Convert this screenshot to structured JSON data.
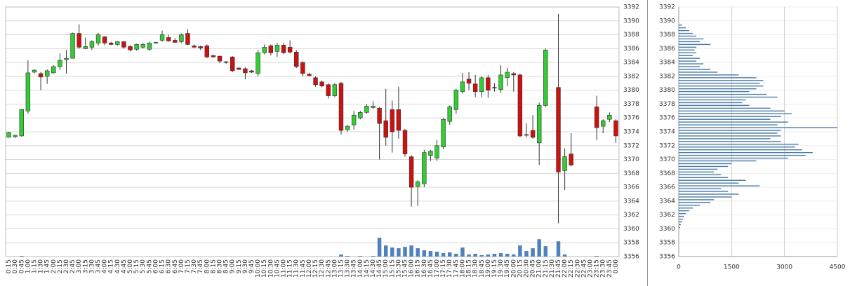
{
  "chart_data": [
    {
      "type": "candlestick",
      "categories": [
        "0:15",
        "0:30",
        "0:45",
        "1:00",
        "1:15",
        "1:30",
        "1:45",
        "2:00",
        "2:15",
        "2:30",
        "2:45",
        "3:00",
        "3:15",
        "3:30",
        "3:45",
        "4:00",
        "4:15",
        "4:30",
        "4:45",
        "5:00",
        "5:15",
        "5:30",
        "5:45",
        "6:00",
        "6:15",
        "6:30",
        "6:45",
        "7:00",
        "7:15",
        "7:30",
        "7:45",
        "8:00",
        "8:15",
        "8:30",
        "8:45",
        "9:00",
        "9:15",
        "9:30",
        "9:45",
        "10:00",
        "10:15",
        "10:30",
        "10:45",
        "11:00",
        "11:15",
        "11:30",
        "11:45",
        "12:00",
        "12:15",
        "12:30",
        "12:45",
        "13:00",
        "13:15",
        "13:30",
        "13:45",
        "14:00",
        "14:15",
        "14:30",
        "14:45",
        "15:00",
        "15:15",
        "15:30",
        "15:45",
        "16:00",
        "16:15",
        "16:30",
        "16:45",
        "17:00",
        "17:15",
        "17:30",
        "17:45",
        "18:00",
        "18:15",
        "18:30",
        "18:45",
        "19:00",
        "19:15",
        "19:30",
        "19:45",
        "20:00",
        "20:15",
        "20:30",
        "20:45",
        "21:00",
        "21:15",
        "21:30",
        "21:45",
        "22:00",
        "22:15",
        "22:30",
        "22:45",
        "23:00",
        "23:15",
        "23:30",
        "23:45",
        "0:00"
      ],
      "open": [
        3373.2,
        3373.3,
        3373.4,
        3377,
        3382.6,
        3382.4,
        3382,
        3382.5,
        3383.4,
        3384.4,
        3384.6,
        3388.2,
        3386,
        3386.2,
        3386.8,
        3387.7,
        3386.8,
        3386.6,
        3387,
        3386.3,
        3385.9,
        3386.2,
        3385.9,
        3386.8,
        3387.2,
        3387.6,
        3387.2,
        3387,
        3388.2,
        3386.4,
        3386.3,
        3386.4,
        3385,
        3384.9,
        3384.1,
        3384.8,
        3383.2,
        3383.1,
        3382.8,
        3382.4,
        3385.4,
        3386.4,
        3385.6,
        3386.5,
        3386.2,
        3385.5,
        3384,
        3382.3,
        3381.8,
        3381.2,
        3380.8,
        3379.2,
        3381,
        3374.3,
        3375,
        3376,
        3376.8,
        3377.5,
        3377.4,
        3375.6,
        3377.2,
        3377.2,
        3374.2,
        3370.4,
        3366.1,
        3366.5,
        3370.6,
        3370.2,
        3371.8,
        3375.5,
        3377.2,
        3379.8,
        3381.6,
        3380.9,
        3379.8,
        3381.8,
        3380.4,
        3380.1,
        3381.8,
        3382.4,
        3382.2,
        3373.6,
        3374.2,
        3372.4,
        3377.8,
        null,
        3380.4,
        3368.4,
        3370.8,
        null,
        null,
        null,
        3377.6,
        3374.8,
        3375.8,
        3375.6
      ],
      "high": [
        3374,
        3373.6,
        3377.3,
        3384.3,
        3383,
        3382.6,
        3383,
        3383.6,
        3385.3,
        3385.8,
        3388.3,
        3389.5,
        3387.6,
        3387.2,
        3388.3,
        3387.8,
        3387,
        3387.1,
        3387.1,
        3386.5,
        3386.7,
        3386.8,
        3387,
        3387,
        3388.6,
        3388,
        3387.5,
        3388.2,
        3388.8,
        3386.6,
        3386.4,
        3386.6,
        3385.1,
        3385,
        3384.2,
        3384.9,
        3383.3,
        3383.3,
        3382.9,
        3385.8,
        3386.6,
        3386.6,
        3386.8,
        3386.8,
        3387.2,
        3385.8,
        3384.2,
        3382.5,
        3382,
        3381.4,
        3381,
        3381,
        3381.2,
        3375,
        3377,
        3377,
        3378,
        3378.4,
        3377.6,
        3380.2,
        3378.5,
        3380.5,
        3374.4,
        3370.6,
        3367,
        3371.4,
        3371.4,
        3372.8,
        3376,
        3377.8,
        3380.2,
        3382.5,
        3382.6,
        3382.2,
        3382,
        3382.2,
        3381,
        3383.6,
        3383.2,
        3382.6,
        3382.4,
        3375.2,
        3376.4,
        3378.2,
        3386,
        null,
        3391,
        3371.6,
        3373.8,
        null,
        null,
        null,
        3379.2,
        3375.8,
        3376.8,
        3375.8
      ],
      "low": [
        3373.2,
        3373.1,
        3373.3,
        3376.6,
        3382.4,
        3380,
        3380.9,
        3382.4,
        3382.9,
        3382.4,
        3384.6,
        3386,
        3385.9,
        3385.8,
        3386.4,
        3386.5,
        3386.5,
        3386.4,
        3386,
        3385.6,
        3385.7,
        3386,
        3385.7,
        3386.7,
        3387,
        3387,
        3386.8,
        3386.8,
        3386.5,
        3386.1,
        3385.8,
        3384.6,
        3384.7,
        3383.9,
        3383.8,
        3382.6,
        3382.9,
        3381.6,
        3382.5,
        3382,
        3385.2,
        3385,
        3384.8,
        3385.2,
        3385.3,
        3383.2,
        3382,
        3382,
        3380.5,
        3380.4,
        3378.8,
        3379,
        3373.6,
        3374,
        3374.3,
        3375.8,
        3376.6,
        3377.3,
        3370,
        3372,
        3371,
        3373,
        3370.4,
        3363.2,
        3363.3,
        3366,
        3369.8,
        3369.8,
        3371.5,
        3375,
        3376.6,
        3379.5,
        3380,
        3379,
        3379,
        3378.9,
        3379.8,
        3379.6,
        3380.6,
        3379.8,
        3373.2,
        3373.2,
        3373,
        3369.2,
        3377.6,
        null,
        3360.8,
        3365.6,
        3369,
        null,
        null,
        null,
        3372.8,
        3373.8,
        3375.4,
        3372.4
      ],
      "close": [
        3373.9,
        3373.5,
        3377.2,
        3382.5,
        3382.9,
        3381.9,
        3382.8,
        3383.4,
        3384.3,
        3384.6,
        3388.2,
        3386.2,
        3386.3,
        3387,
        3388,
        3386.8,
        3386.6,
        3387,
        3386.2,
        3385.8,
        3386.6,
        3386.6,
        3386.8,
        3386.9,
        3388,
        3387.1,
        3386.9,
        3388,
        3386.6,
        3386.2,
        3386.1,
        3384.8,
        3384.8,
        3384.2,
        3384,
        3382.8,
        3383,
        3382.5,
        3382.6,
        3385.4,
        3386.2,
        3385.4,
        3386.5,
        3385.4,
        3385.5,
        3383.4,
        3382.4,
        3382.1,
        3380.8,
        3380.6,
        3379.2,
        3380.8,
        3374.2,
        3374.8,
        3376.4,
        3376.8,
        3377.7,
        3377.7,
        3375.2,
        3373.2,
        3374,
        3374.2,
        3370.8,
        3366,
        3366.8,
        3371,
        3371.2,
        3372,
        3375.8,
        3377.6,
        3380,
        3381.2,
        3381,
        3379.8,
        3381.8,
        3380,
        3380.3,
        3382.2,
        3382.6,
        3382.2,
        3373.4,
        3373.5,
        3373.2,
        3377.8,
        3385.8,
        null,
        3368.2,
        3370.4,
        3369.2,
        null,
        null,
        null,
        3374.6,
        3375.6,
        3376.4,
        3373.4
      ],
      "volume": [
        0,
        0,
        0.1,
        0,
        0,
        0,
        0,
        0,
        0,
        0,
        0,
        0,
        0,
        0,
        0,
        0,
        0,
        0,
        0,
        0,
        0,
        0,
        0,
        0,
        0,
        0,
        0,
        0,
        0,
        0,
        0,
        0,
        0,
        0,
        0,
        0,
        0,
        0,
        0,
        0,
        0,
        0,
        0,
        0,
        0,
        0,
        0,
        0,
        0,
        0,
        0,
        0,
        0.3,
        0.1,
        0,
        0.1,
        0,
        0.1,
        2.7,
        1.6,
        1.3,
        1.2,
        1.4,
        1.6,
        1.2,
        0.9,
        0.8,
        0.7,
        0.5,
        0.6,
        0.4,
        1.3,
        0.3,
        0.4,
        0.2,
        0.3,
        0.4,
        0.5,
        0.4,
        0.3,
        1.6,
        0.8,
        1.2,
        2.5,
        1.5,
        0,
        2.2,
        0.3,
        0,
        0,
        0,
        0,
        0.1,
        0,
        0,
        0
      ],
      "ylim": [
        3356,
        3392
      ],
      "yticks": [
        3356,
        3358,
        3360,
        3362,
        3364,
        3366,
        3368,
        3370,
        3372,
        3374,
        3376,
        3378,
        3380,
        3382,
        3384,
        3386,
        3388,
        3390,
        3392
      ],
      "grid": true,
      "up_color": "#33cc33",
      "down_color": "#cc1111",
      "volume_color": "#4f81bd"
    },
    {
      "type": "barh",
      "y": [
        3389.4,
        3389.0,
        3388.6,
        3388.2,
        3387.8,
        3387.4,
        3387.0,
        3386.6,
        3386.2,
        3385.8,
        3385.4,
        3385.0,
        3384.6,
        3384.2,
        3383.8,
        3383.4,
        3383.0,
        3382.6,
        3382.2,
        3381.8,
        3381.4,
        3381.0,
        3380.6,
        3380.2,
        3379.8,
        3379.4,
        3379.0,
        3378.6,
        3378.2,
        3377.8,
        3377.4,
        3377.0,
        3376.6,
        3376.2,
        3375.8,
        3375.4,
        3375.0,
        3374.6,
        3374.2,
        3373.8,
        3373.4,
        3373.0,
        3372.6,
        3372.2,
        3371.8,
        3371.4,
        3371.0,
        3370.6,
        3370.2,
        3369.8,
        3369.4,
        3369.0,
        3368.6,
        3368.2,
        3367.8,
        3367.4,
        3367.0,
        3366.6,
        3366.2,
        3365.8,
        3365.4,
        3365.0,
        3364.6,
        3364.2,
        3363.8,
        3363.4,
        3363.0,
        3362.6,
        3362.2,
        3361.8,
        3361.4,
        3361.0,
        3360.6,
        3360.2
      ],
      "values": [
        100,
        200,
        300,
        400,
        500,
        700,
        600,
        900,
        500,
        450,
        500,
        400,
        600,
        500,
        700,
        600,
        900,
        1100,
        1700,
        2200,
        2400,
        2300,
        2400,
        2200,
        2000,
        2500,
        2800,
        1900,
        1800,
        2000,
        2600,
        3000,
        3200,
        2900,
        2600,
        3100,
        2800,
        4500,
        2900,
        2800,
        2900,
        2600,
        2900,
        3400,
        3300,
        3500,
        3800,
        3600,
        3100,
        2200,
        1500,
        1400,
        1100,
        1000,
        1200,
        1400,
        1900,
        1700,
        2300,
        1200,
        1400,
        1700,
        1500,
        1000,
        900,
        600,
        400,
        300,
        200,
        150,
        120,
        100,
        60,
        40
      ],
      "xlim": [
        0,
        4500
      ],
      "xticks": [
        0,
        1500,
        3000,
        4500
      ],
      "ylim": [
        3356,
        3392
      ],
      "yticks": [
        3356,
        3358,
        3360,
        3362,
        3364,
        3366,
        3368,
        3370,
        3372,
        3374,
        3376,
        3378,
        3380,
        3382,
        3384,
        3386,
        3388,
        3390,
        3392
      ],
      "grid": true,
      "color": "#4a7ba7"
    }
  ]
}
